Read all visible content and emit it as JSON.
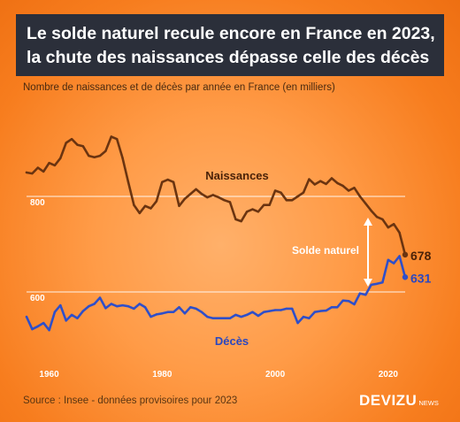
{
  "title": {
    "line1": "Le solde naturel recule encore en France en 2023,",
    "line2": "la chute des naissances dépasse celle des décès"
  },
  "subtitle": "Nombre de naissances et de décès par année en France (en milliers)",
  "source": "Source : Insee - données provisoires pour 2023",
  "brand": {
    "name": "DEVIZU",
    "suffix": "NEWS"
  },
  "colors": {
    "births": "#6b3410",
    "deaths": "#2f4fc9",
    "labels_births": "#4a2208",
    "labels_deaths": "#2a47c0",
    "gridline": "#ffffff",
    "arrow": "#ffffff"
  },
  "chart_data": {
    "type": "line",
    "x": [
      1956,
      1957,
      1958,
      1959,
      1960,
      1961,
      1962,
      1963,
      1964,
      1965,
      1966,
      1967,
      1968,
      1969,
      1970,
      1971,
      1972,
      1973,
      1974,
      1975,
      1976,
      1977,
      1978,
      1979,
      1980,
      1981,
      1982,
      1983,
      1984,
      1985,
      1986,
      1987,
      1988,
      1989,
      1990,
      1991,
      1992,
      1993,
      1994,
      1995,
      1996,
      1997,
      1998,
      1999,
      2000,
      2001,
      2002,
      2003,
      2004,
      2005,
      2006,
      2007,
      2008,
      2009,
      2010,
      2011,
      2012,
      2013,
      2014,
      2015,
      2016,
      2017,
      2018,
      2019,
      2020,
      2021,
      2022,
      2023
    ],
    "series": [
      {
        "name": "Naissances",
        "values": [
          850,
          848,
          860,
          852,
          870,
          865,
          880,
          912,
          920,
          908,
          905,
          885,
          882,
          885,
          895,
          925,
          920,
          880,
          830,
          782,
          765,
          780,
          775,
          790,
          830,
          835,
          830,
          780,
          795,
          805,
          815,
          805,
          798,
          803,
          798,
          792,
          788,
          752,
          748,
          768,
          773,
          768,
          782,
          782,
          812,
          808,
          792,
          792,
          800,
          808,
          836,
          825,
          832,
          826,
          838,
          828,
          822,
          812,
          818,
          800,
          785,
          770,
          757,
          752,
          735,
          742,
          724,
          678
        ]
      },
      {
        "name": "Décès",
        "values": [
          548,
          522,
          528,
          535,
          520,
          558,
          572,
          540,
          552,
          545,
          560,
          570,
          575,
          588,
          566,
          575,
          570,
          572,
          570,
          565,
          575,
          568,
          548,
          553,
          555,
          558,
          558,
          568,
          555,
          568,
          565,
          558,
          548,
          545,
          545,
          545,
          545,
          552,
          548,
          552,
          558,
          550,
          558,
          560,
          562,
          562,
          565,
          565,
          535,
          548,
          545,
          558,
          560,
          561,
          568,
          568,
          582,
          581,
          574,
          597,
          594,
          615,
          617,
          620,
          667,
          660,
          675,
          631
        ]
      }
    ],
    "end_labels": [
      "678",
      "631"
    ],
    "series_labels": [
      "Naissances",
      "Décès"
    ],
    "annotation": "Solde naturel",
    "x_ticks": [
      "1960",
      "1980",
      "2000",
      "2020"
    ],
    "y_ticks": [
      "800",
      "600"
    ],
    "xlim": [
      1956,
      2023
    ],
    "ylim": [
      500,
      950
    ],
    "grid": "horizontal"
  }
}
